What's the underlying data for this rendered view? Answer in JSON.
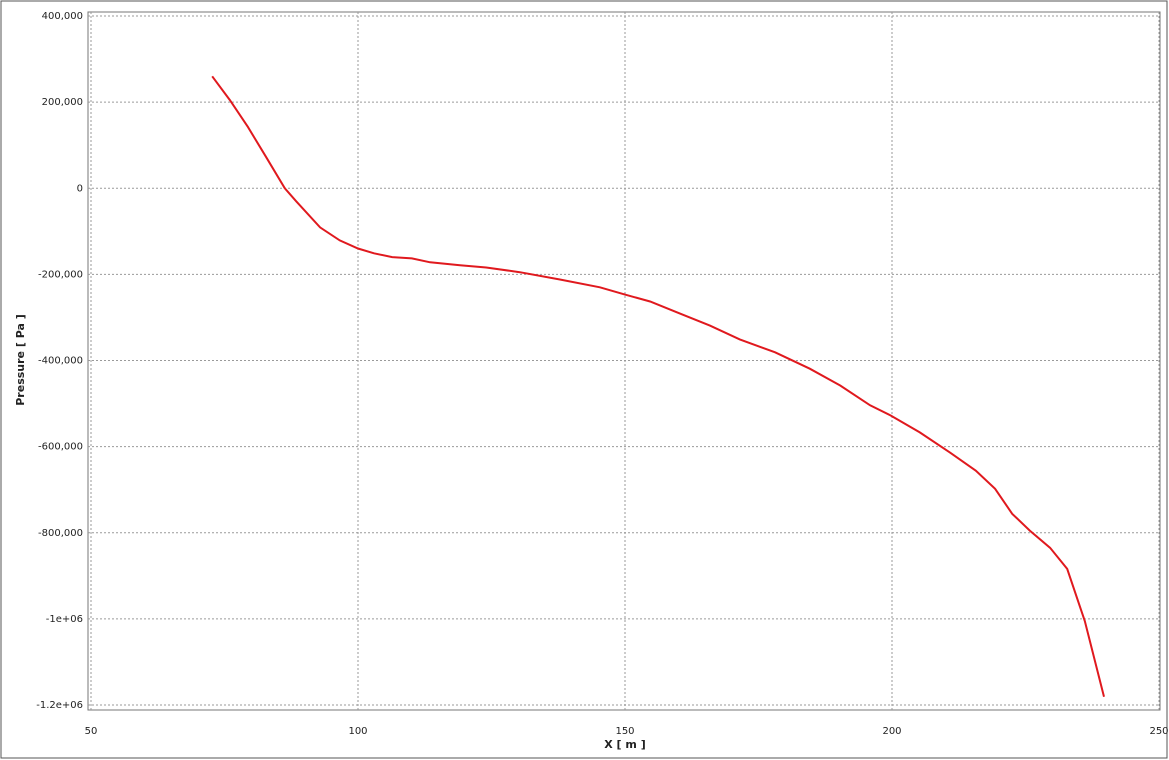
{
  "chart_data": {
    "type": "line",
    "x_label": "X [ m ]",
    "y_label": "Pressure [ Pa ]",
    "xlim": [
      50,
      250
    ],
    "xticks": [
      50,
      100,
      150,
      200,
      250
    ],
    "ylim": [
      -1200000,
      400000
    ],
    "yticks": [
      {
        "value": 400000,
        "label": "400,000"
      },
      {
        "value": 200000,
        "label": "200,000"
      },
      0,
      {
        "value": -200000,
        "label": "-200,000"
      },
      {
        "value": -400000,
        "label": "-400,000"
      },
      {
        "value": -600000,
        "label": "-600,000"
      },
      {
        "value": -800000,
        "label": "-800,000"
      },
      {
        "value": -1000000,
        "label": "-1e+06"
      },
      {
        "value": -1200000,
        "label": "-1.2e+06"
      }
    ],
    "grid": true,
    "series": [
      {
        "color": "#e0191e",
        "x": [
          72.7,
          76.0,
          79.4,
          82.8,
          86.3,
          88.4,
          92.9,
          96.6,
          100,
          103,
          106.4,
          110.1,
          113.5,
          119.1,
          124,
          130.3,
          137.8,
          145.3,
          150,
          154.7,
          160.3,
          165.9,
          171.5,
          178.1,
          184.6,
          190.3,
          195.9,
          199.8,
          205.2,
          210.9,
          215.7,
          219.3,
          222.5,
          225.8,
          229.6,
          232.8,
          236.1,
          239.7
        ],
        "values": [
          260000,
          205000,
          142000,
          72000,
          0,
          -30000,
          -91000,
          -121000,
          -140000,
          -151000,
          -160000,
          -163000,
          -172000,
          -179000,
          -184000,
          -195000,
          -212000,
          -230000,
          -247000,
          -263000,
          -291000,
          -319000,
          -351000,
          -381000,
          -419000,
          -458000,
          -504000,
          -528000,
          -567000,
          -614000,
          -656000,
          -698000,
          -756000,
          -795000,
          -835000,
          -884000,
          -1005000,
          -1181000
        ]
      }
    ]
  }
}
